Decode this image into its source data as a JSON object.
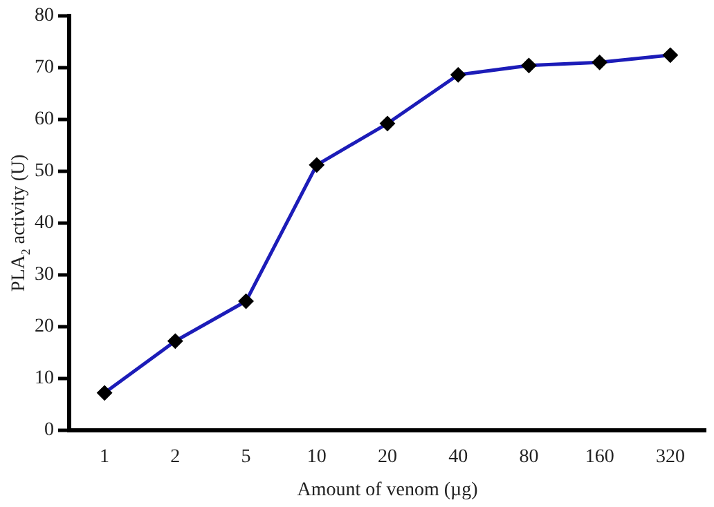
{
  "chart_data": {
    "type": "line",
    "xlabel": "Amount of venom (µg)",
    "ylabel": "PLA$_{2}$ activity (U)",
    "categories": [
      "1",
      "2",
      "5",
      "10",
      "20",
      "40",
      "80",
      "160",
      "320"
    ],
    "series": [
      {
        "color": "#1c1cb8",
        "values": [
          7.2,
          17.2,
          24.9,
          51.2,
          59.2,
          68.6,
          70.4,
          71.0,
          72.4
        ]
      }
    ],
    "ylim": [
      0,
      80
    ],
    "yticks": [
      0,
      10,
      20,
      30,
      40,
      50,
      60,
      70,
      80
    ],
    "grid": false,
    "legend": false,
    "marker": "diamond",
    "line_style": "solid"
  }
}
